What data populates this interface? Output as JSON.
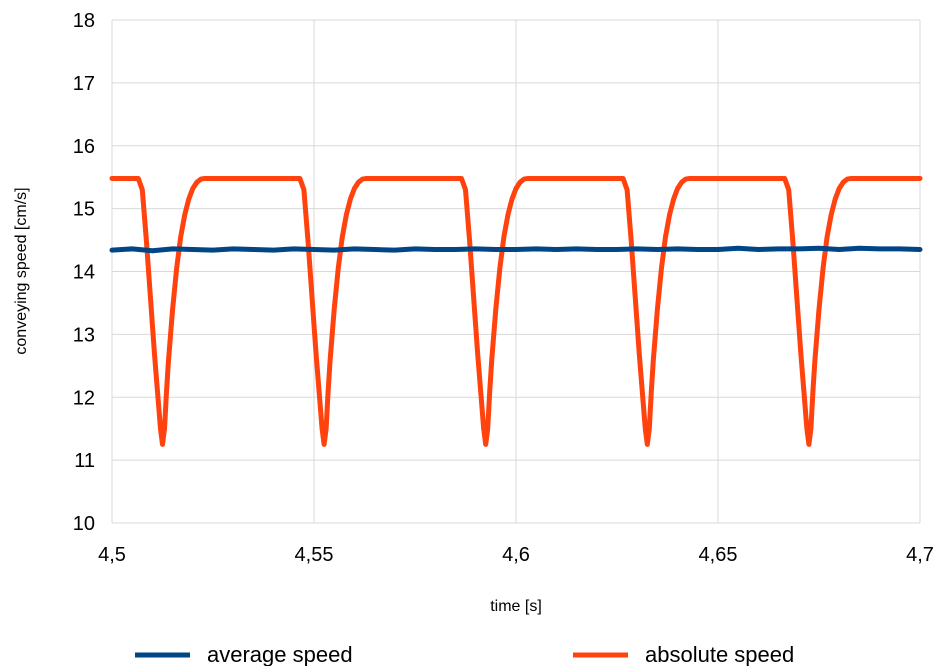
{
  "chart_data": {
    "type": "line",
    "title": "",
    "xlabel": "time [s]",
    "ylabel": "conveying speed [cm/s]",
    "xlim": [
      4.5,
      4.7
    ],
    "ylim": [
      10,
      18
    ],
    "xticks": [
      4.5,
      4.55,
      4.6,
      4.65,
      4.7
    ],
    "xtick_labels": [
      "4,5",
      "4,55",
      "4,6",
      "4,65",
      "4,7"
    ],
    "yticks": [
      10,
      11,
      12,
      13,
      14,
      15,
      16,
      17,
      18
    ],
    "ytick_labels": [
      "10",
      "11",
      "12",
      "13",
      "14",
      "15",
      "16",
      "17",
      "18"
    ],
    "grid": true,
    "legend_position": "bottom",
    "series": [
      {
        "name": "average speed",
        "color": "#004586",
        "x": [
          4.5,
          4.505,
          4.51,
          4.515,
          4.52,
          4.525,
          4.53,
          4.535,
          4.54,
          4.545,
          4.55,
          4.555,
          4.56,
          4.565,
          4.57,
          4.575,
          4.58,
          4.585,
          4.59,
          4.595,
          4.6,
          4.605,
          4.61,
          4.615,
          4.62,
          4.625,
          4.63,
          4.635,
          4.64,
          4.645,
          4.65,
          4.655,
          4.66,
          4.665,
          4.67,
          4.675,
          4.68,
          4.685,
          4.69,
          4.695,
          4.7
        ],
        "y": [
          14.34,
          14.36,
          14.33,
          14.36,
          14.35,
          14.34,
          14.36,
          14.35,
          14.34,
          14.36,
          14.35,
          14.34,
          14.36,
          14.35,
          14.34,
          14.36,
          14.35,
          14.35,
          14.36,
          14.35,
          14.35,
          14.36,
          14.35,
          14.36,
          14.35,
          14.35,
          14.36,
          14.35,
          14.36,
          14.35,
          14.35,
          14.37,
          14.35,
          14.36,
          14.36,
          14.37,
          14.35,
          14.37,
          14.36,
          14.36,
          14.35
        ]
      },
      {
        "name": "absolute speed",
        "color": "#ff420e",
        "x": [
          4.5,
          4.5065,
          4.5075,
          4.5085,
          4.5095,
          4.5105,
          4.5115,
          4.512,
          4.5125,
          4.513,
          4.5135,
          4.514,
          4.515,
          4.516,
          4.517,
          4.518,
          4.519,
          4.52,
          4.521,
          4.522,
          4.523,
          4.5465,
          4.5475,
          4.5485,
          4.5495,
          4.5505,
          4.5515,
          4.552,
          4.5525,
          4.553,
          4.5535,
          4.554,
          4.555,
          4.556,
          4.557,
          4.558,
          4.559,
          4.56,
          4.561,
          4.562,
          4.563,
          4.5865,
          4.5875,
          4.5885,
          4.5895,
          4.5905,
          4.5915,
          4.592,
          4.5925,
          4.593,
          4.5935,
          4.594,
          4.595,
          4.596,
          4.597,
          4.598,
          4.599,
          4.6,
          4.601,
          4.602,
          4.603,
          4.6265,
          4.6275,
          4.6285,
          4.6295,
          4.6305,
          4.6315,
          4.632,
          4.6325,
          4.633,
          4.6335,
          4.634,
          4.635,
          4.636,
          4.637,
          4.638,
          4.639,
          4.64,
          4.641,
          4.642,
          4.643,
          4.6665,
          4.6675,
          4.6685,
          4.6695,
          4.6705,
          4.6715,
          4.672,
          4.6725,
          4.673,
          4.6735,
          4.674,
          4.675,
          4.676,
          4.677,
          4.678,
          4.679,
          4.68,
          4.681,
          4.682,
          4.683,
          4.7
        ],
        "y": [
          15.48,
          15.48,
          15.3,
          14.5,
          13.6,
          12.7,
          11.9,
          11.5,
          11.25,
          11.5,
          12.1,
          12.6,
          13.4,
          14.05,
          14.55,
          14.9,
          15.15,
          15.32,
          15.42,
          15.47,
          15.48,
          15.48,
          15.3,
          14.5,
          13.6,
          12.7,
          11.9,
          11.5,
          11.25,
          11.5,
          12.1,
          12.6,
          13.4,
          14.05,
          14.55,
          14.9,
          15.15,
          15.32,
          15.42,
          15.47,
          15.48,
          15.48,
          15.3,
          14.5,
          13.6,
          12.7,
          11.9,
          11.5,
          11.25,
          11.5,
          12.1,
          12.6,
          13.4,
          14.05,
          14.55,
          14.9,
          15.15,
          15.32,
          15.42,
          15.47,
          15.48,
          15.48,
          15.3,
          14.5,
          13.6,
          12.7,
          11.9,
          11.5,
          11.25,
          11.5,
          12.1,
          12.6,
          13.4,
          14.05,
          14.55,
          14.9,
          15.15,
          15.32,
          15.42,
          15.47,
          15.48,
          15.48,
          15.3,
          14.5,
          13.6,
          12.7,
          11.9,
          11.5,
          11.25,
          11.5,
          12.1,
          12.6,
          13.4,
          14.05,
          14.55,
          14.9,
          15.15,
          15.32,
          15.42,
          15.47,
          15.48,
          15.48
        ]
      }
    ]
  }
}
